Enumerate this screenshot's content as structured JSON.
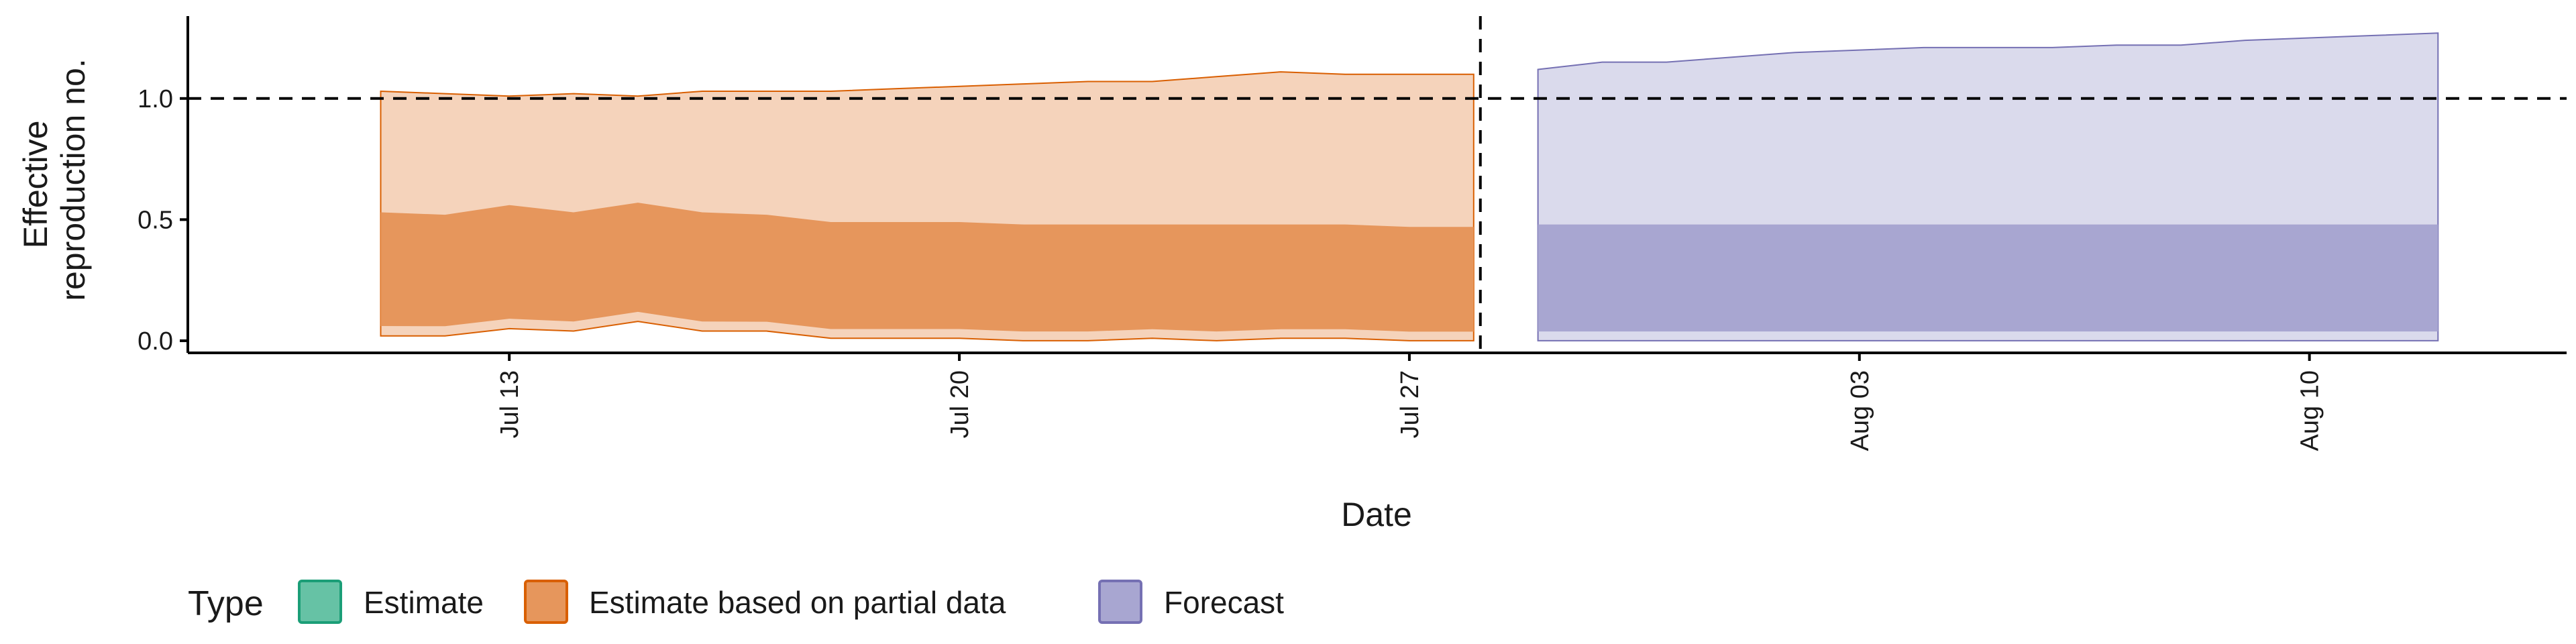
{
  "chart_data": {
    "type": "area",
    "xlabel": "Date",
    "ylabel_lines": [
      "Effective",
      "reproduction no."
    ],
    "ylim": [
      -0.05,
      1.34
    ],
    "y_ticks": [
      {
        "value": 0.0,
        "label": "0.0"
      },
      {
        "value": 0.5,
        "label": "0.5"
      },
      {
        "value": 1.0,
        "label": "1.0"
      }
    ],
    "x_range": [
      "2020-07-08",
      "2020-08-14"
    ],
    "x_ticks": [
      {
        "date": "2020-07-13",
        "label": "Jul 13"
      },
      {
        "date": "2020-07-20",
        "label": "Jul 20"
      },
      {
        "date": "2020-07-27",
        "label": "Jul 27"
      },
      {
        "date": "2020-08-03",
        "label": "Aug 03"
      },
      {
        "date": "2020-08-10",
        "label": "Aug 10"
      }
    ],
    "reference_hline": 1.0,
    "reference_vline": "2020-07-28",
    "legend_title": "Type",
    "legend_position": "bottom",
    "series": [
      {
        "name": "Estimate",
        "color": "#66c2a5",
        "stroke": "#1b9e77",
        "values": []
      },
      {
        "name": "Estimate based on partial data",
        "color": "#e6965c",
        "stroke": "#d95f02",
        "values": [
          {
            "date": "2020-07-11",
            "lo90": 0.02,
            "lo50": 0.53,
            "hi50": 0.53,
            "hi90": 1.03
          },
          {
            "date": "2020-07-12",
            "lo90": 0.02,
            "lo50": 0.52,
            "hi50": 0.52,
            "hi90": 1.02
          },
          {
            "date": "2020-07-13",
            "lo90": 0.05,
            "lo50": 0.56,
            "hi50": 0.56,
            "hi90": 1.01
          },
          {
            "date": "2020-07-14",
            "lo90": 0.04,
            "lo50": 0.53,
            "hi50": 0.53,
            "hi90": 1.02
          },
          {
            "date": "2020-07-15",
            "lo90": 0.08,
            "lo50": 0.57,
            "hi50": 0.57,
            "hi90": 1.01
          },
          {
            "date": "2020-07-16",
            "lo90": 0.04,
            "lo50": 0.53,
            "hi50": 0.53,
            "hi90": 1.03
          },
          {
            "date": "2020-07-17",
            "lo90": 0.04,
            "lo50": 0.52,
            "hi50": 0.52,
            "hi90": 1.03
          },
          {
            "date": "2020-07-18",
            "lo90": 0.01,
            "lo50": 0.49,
            "hi50": 0.49,
            "hi90": 1.03
          },
          {
            "date": "2020-07-19",
            "lo90": 0.01,
            "lo50": 0.49,
            "hi50": 0.49,
            "hi90": 1.04
          },
          {
            "date": "2020-07-20",
            "lo90": 0.01,
            "lo50": 0.49,
            "hi50": 0.49,
            "hi90": 1.05
          },
          {
            "date": "2020-07-21",
            "lo90": 0.0,
            "lo50": 0.48,
            "hi50": 0.48,
            "hi90": 1.06
          },
          {
            "date": "2020-07-22",
            "lo90": 0.0,
            "lo50": 0.48,
            "hi50": 0.48,
            "hi90": 1.07
          },
          {
            "date": "2020-07-23",
            "lo90": 0.01,
            "lo50": 0.48,
            "hi50": 0.48,
            "hi90": 1.07
          },
          {
            "date": "2020-07-24",
            "lo90": 0.0,
            "lo50": 0.48,
            "hi50": 0.48,
            "hi90": 1.09
          },
          {
            "date": "2020-07-25",
            "lo90": 0.01,
            "lo50": 0.48,
            "hi50": 0.48,
            "hi90": 1.11
          },
          {
            "date": "2020-07-26",
            "lo90": 0.01,
            "lo50": 0.48,
            "hi50": 0.48,
            "hi90": 1.1
          },
          {
            "date": "2020-07-27",
            "lo90": 0.0,
            "lo50": 0.47,
            "hi50": 0.47,
            "hi90": 1.1
          },
          {
            "date": "2020-07-28",
            "lo90": 0.0,
            "lo50": 0.47,
            "hi50": 0.47,
            "hi90": 1.1
          }
        ]
      },
      {
        "name": "Forecast",
        "color": "#a8a6d1",
        "stroke": "#7570b3",
        "values": [
          {
            "date": "2020-07-29",
            "lo90": 0.0,
            "lo50": 0.48,
            "hi50": 0.48,
            "hi90": 1.12
          },
          {
            "date": "2020-07-30",
            "lo90": 0.0,
            "lo50": 0.48,
            "hi50": 0.48,
            "hi90": 1.15
          },
          {
            "date": "2020-07-31",
            "lo90": 0.0,
            "lo50": 0.48,
            "hi50": 0.48,
            "hi90": 1.15
          },
          {
            "date": "2020-08-01",
            "lo90": 0.0,
            "lo50": 0.48,
            "hi50": 0.48,
            "hi90": 1.17
          },
          {
            "date": "2020-08-02",
            "lo90": 0.0,
            "lo50": 0.48,
            "hi50": 0.48,
            "hi90": 1.19
          },
          {
            "date": "2020-08-03",
            "lo90": 0.0,
            "lo50": 0.48,
            "hi50": 0.48,
            "hi90": 1.2
          },
          {
            "date": "2020-08-04",
            "lo90": 0.0,
            "lo50": 0.48,
            "hi50": 0.48,
            "hi90": 1.21
          },
          {
            "date": "2020-08-05",
            "lo90": 0.0,
            "lo50": 0.48,
            "hi50": 0.48,
            "hi90": 1.21
          },
          {
            "date": "2020-08-06",
            "lo90": 0.0,
            "lo50": 0.48,
            "hi50": 0.48,
            "hi90": 1.21
          },
          {
            "date": "2020-08-07",
            "lo90": 0.0,
            "lo50": 0.48,
            "hi50": 0.48,
            "hi90": 1.22
          },
          {
            "date": "2020-08-08",
            "lo90": 0.0,
            "lo50": 0.48,
            "hi50": 0.48,
            "hi90": 1.22
          },
          {
            "date": "2020-08-09",
            "lo90": 0.0,
            "lo50": 0.48,
            "hi50": 0.48,
            "hi90": 1.24
          },
          {
            "date": "2020-08-10",
            "lo90": 0.0,
            "lo50": 0.48,
            "hi50": 0.48,
            "hi90": 1.25
          },
          {
            "date": "2020-08-11",
            "lo90": 0.0,
            "lo50": 0.48,
            "hi50": 0.48,
            "hi90": 1.26
          },
          {
            "date": "2020-08-12",
            "lo90": 0.0,
            "lo50": 0.48,
            "hi50": 0.48,
            "hi90": 1.27
          }
        ]
      }
    ]
  }
}
